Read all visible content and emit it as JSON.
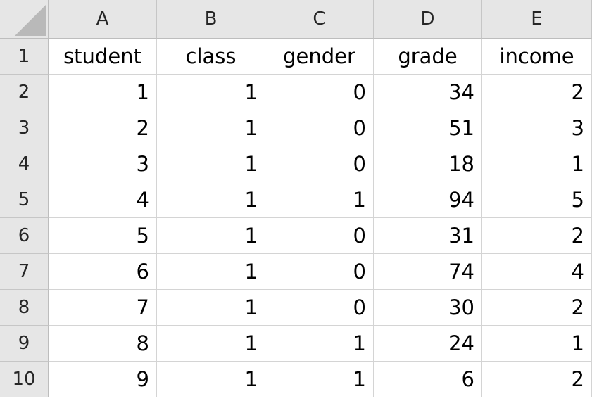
{
  "sheet": {
    "columns": [
      "A",
      "B",
      "C",
      "D",
      "E"
    ],
    "rows": [
      "1",
      "2",
      "3",
      "4",
      "5",
      "6",
      "7",
      "8",
      "9",
      "10"
    ],
    "header": [
      "student",
      "class",
      "gender",
      "grade",
      "income"
    ],
    "data": [
      [
        "1",
        "1",
        "0",
        "34",
        "2"
      ],
      [
        "2",
        "1",
        "0",
        "51",
        "3"
      ],
      [
        "3",
        "1",
        "0",
        "18",
        "1"
      ],
      [
        "4",
        "1",
        "1",
        "94",
        "5"
      ],
      [
        "5",
        "1",
        "0",
        "31",
        "2"
      ],
      [
        "6",
        "1",
        "0",
        "74",
        "4"
      ],
      [
        "7",
        "1",
        "0",
        "30",
        "2"
      ],
      [
        "8",
        "1",
        "1",
        "24",
        "1"
      ],
      [
        "9",
        "1",
        "1",
        "6",
        "2"
      ]
    ]
  },
  "colors": {
    "header_bg": "#e6e6e6",
    "gridline": "#d4d4d4",
    "select_all_triangle": "#b9b9b9"
  }
}
